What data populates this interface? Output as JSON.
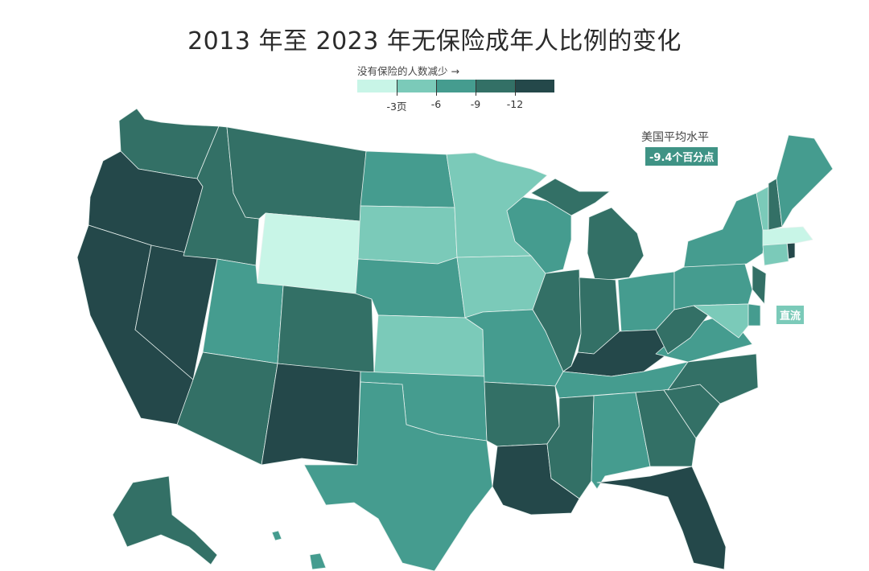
{
  "title": "2013 年至 2023 年无保险成年人比例的变化",
  "legend": {
    "caption": "没有保险的人数减少 →",
    "colors": [
      "#c8f5e7",
      "#7bcab9",
      "#459c8f",
      "#337066",
      "#24484a"
    ],
    "ticks": [
      "-3页",
      "-6",
      "-9",
      "-12"
    ]
  },
  "average": {
    "label": "美国平均水平",
    "value": "-9.4个百分点"
  },
  "dc_label": "直流",
  "map": {
    "type": "choropleth",
    "states": [
      {
        "name": "wa",
        "cls": 3
      },
      {
        "name": "or",
        "cls": 4
      },
      {
        "name": "ca",
        "cls": 4
      },
      {
        "name": "nv",
        "cls": 4
      },
      {
        "name": "id",
        "cls": 3
      },
      {
        "name": "mt",
        "cls": 3
      },
      {
        "name": "wy",
        "cls": 0
      },
      {
        "name": "ut",
        "cls": 2
      },
      {
        "name": "co",
        "cls": 3
      },
      {
        "name": "az",
        "cls": 3
      },
      {
        "name": "nm",
        "cls": 4
      },
      {
        "name": "nd",
        "cls": 2
      },
      {
        "name": "sd",
        "cls": 1
      },
      {
        "name": "ne",
        "cls": 2
      },
      {
        "name": "ks",
        "cls": 1
      },
      {
        "name": "ok",
        "cls": 2
      },
      {
        "name": "tx",
        "cls": 2
      },
      {
        "name": "mn",
        "cls": 1
      },
      {
        "name": "ia",
        "cls": 1
      },
      {
        "name": "mo",
        "cls": 2
      },
      {
        "name": "ar",
        "cls": 3
      },
      {
        "name": "la",
        "cls": 4
      },
      {
        "name": "wi",
        "cls": 2
      },
      {
        "name": "il",
        "cls": 3
      },
      {
        "name": "mi",
        "cls": 3
      },
      {
        "name": "in",
        "cls": 3
      },
      {
        "name": "oh",
        "cls": 2
      },
      {
        "name": "ky",
        "cls": 4
      },
      {
        "name": "tn",
        "cls": 2
      },
      {
        "name": "ms",
        "cls": 3
      },
      {
        "name": "al",
        "cls": 2
      },
      {
        "name": "ga",
        "cls": 3
      },
      {
        "name": "fl",
        "cls": 4
      },
      {
        "name": "sc",
        "cls": 3
      },
      {
        "name": "nc",
        "cls": 3
      },
      {
        "name": "va",
        "cls": 2
      },
      {
        "name": "wv",
        "cls": 3
      },
      {
        "name": "pa",
        "cls": 2
      },
      {
        "name": "ny",
        "cls": 2
      },
      {
        "name": "md",
        "cls": 1
      },
      {
        "name": "de",
        "cls": 2
      },
      {
        "name": "nj",
        "cls": 3
      },
      {
        "name": "ct",
        "cls": 1
      },
      {
        "name": "ri",
        "cls": 4
      },
      {
        "name": "ma",
        "cls": 0
      },
      {
        "name": "vt",
        "cls": 1
      },
      {
        "name": "nh",
        "cls": 3
      },
      {
        "name": "me",
        "cls": 2
      },
      {
        "name": "ak",
        "cls": 3
      },
      {
        "name": "hi",
        "cls": 2
      }
    ]
  }
}
